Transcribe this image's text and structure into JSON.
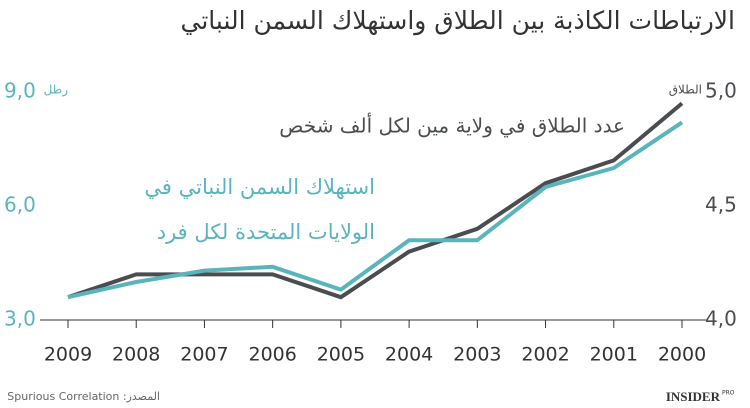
{
  "chart_data": {
    "type": "line",
    "title": "الارتباطات الكاذبة بين الطلاق واستهلاك السمن النباتي",
    "categories": [
      "2009",
      "2008",
      "2007",
      "2006",
      "2005",
      "2004",
      "2003",
      "2002",
      "2001",
      "2000"
    ],
    "series": [
      {
        "name": "استهلاك السمن النباتي في الولايات المتحدة لكل فرد",
        "color": "#5ab4bc",
        "axis": "y",
        "values": [
          3.6,
          4.0,
          4.3,
          4.4,
          3.8,
          5.1,
          5.1,
          6.5,
          7.0,
          8.2
        ]
      },
      {
        "name": "عدد الطلاق في ولاية مين لكل ألف شخص",
        "color": "#4a4d50",
        "axis": "y2",
        "values": [
          4.1,
          4.2,
          4.2,
          4.2,
          4.1,
          4.3,
          4.4,
          4.6,
          4.7,
          4.95
        ]
      }
    ],
    "annotations": [
      "عدد الطلاق في ولاية مين لكل ألف شخص",
      "استهلاك السمن النباتي في",
      "الولايات المتحدة لكل فرد"
    ],
    "ylabel": "رطل",
    "y2label": "الطلاق",
    "ylim": [
      3,
      9
    ],
    "yticks": [
      {
        "value": 3,
        "label": "3,0"
      },
      {
        "value": 6,
        "label": "6,0"
      },
      {
        "value": 9,
        "label": "9,0"
      }
    ],
    "y2lim": [
      4,
      5
    ],
    "y2ticks": [
      {
        "value": 4,
        "label": "4,0"
      },
      {
        "value": 4.5,
        "label": "4,5"
      },
      {
        "value": 5,
        "label": "5,0"
      }
    ],
    "grid": false,
    "source": "المصدر: Spurious Correlation",
    "logo": "INSIDER",
    "logo_sub": "PRO"
  }
}
